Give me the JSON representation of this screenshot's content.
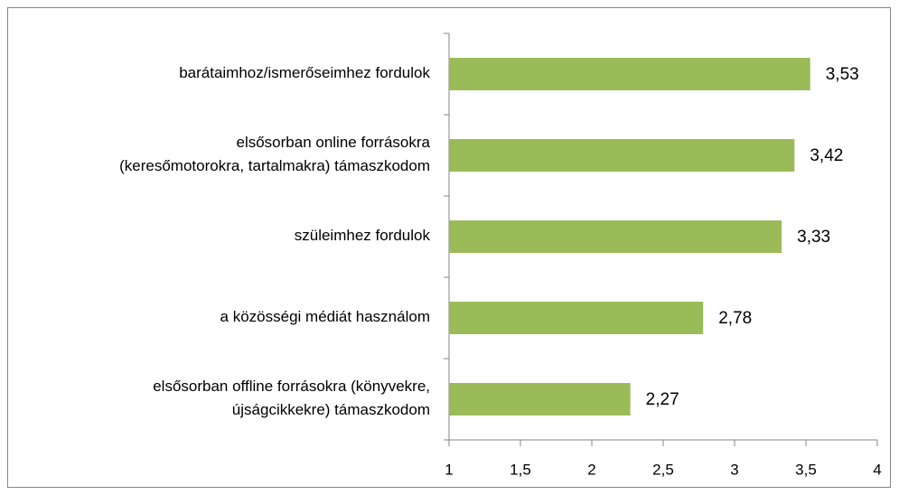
{
  "chart_data": {
    "type": "bar",
    "orientation": "horizontal",
    "categories": [
      [
        "barátaimhoz/ismerőseimhez fordulok"
      ],
      [
        "elsősorban online forrásokra",
        "(keresőmotorokra, tartalmakra) támaszkodom"
      ],
      [
        "szüleimhez fordulok"
      ],
      [
        "a közösségi médiát használom"
      ],
      [
        "elsősorban offline forrásokra (könyvekre,",
        "újságcikkekre) támaszkodom"
      ]
    ],
    "values": [
      3.53,
      3.42,
      3.33,
      2.78,
      2.27
    ],
    "value_labels": [
      "3,53",
      "3,42",
      "3,33",
      "2,78",
      "2,27"
    ],
    "color": "#9bbb59",
    "xlim": [
      1,
      4
    ],
    "xticks": [
      1,
      {
        "value": 1.5,
        "label": "1,5"
      },
      2,
      {
        "value": 2.5,
        "label": "2,5"
      },
      3,
      {
        "value": 3.5,
        "label": "3,5"
      },
      4
    ]
  }
}
